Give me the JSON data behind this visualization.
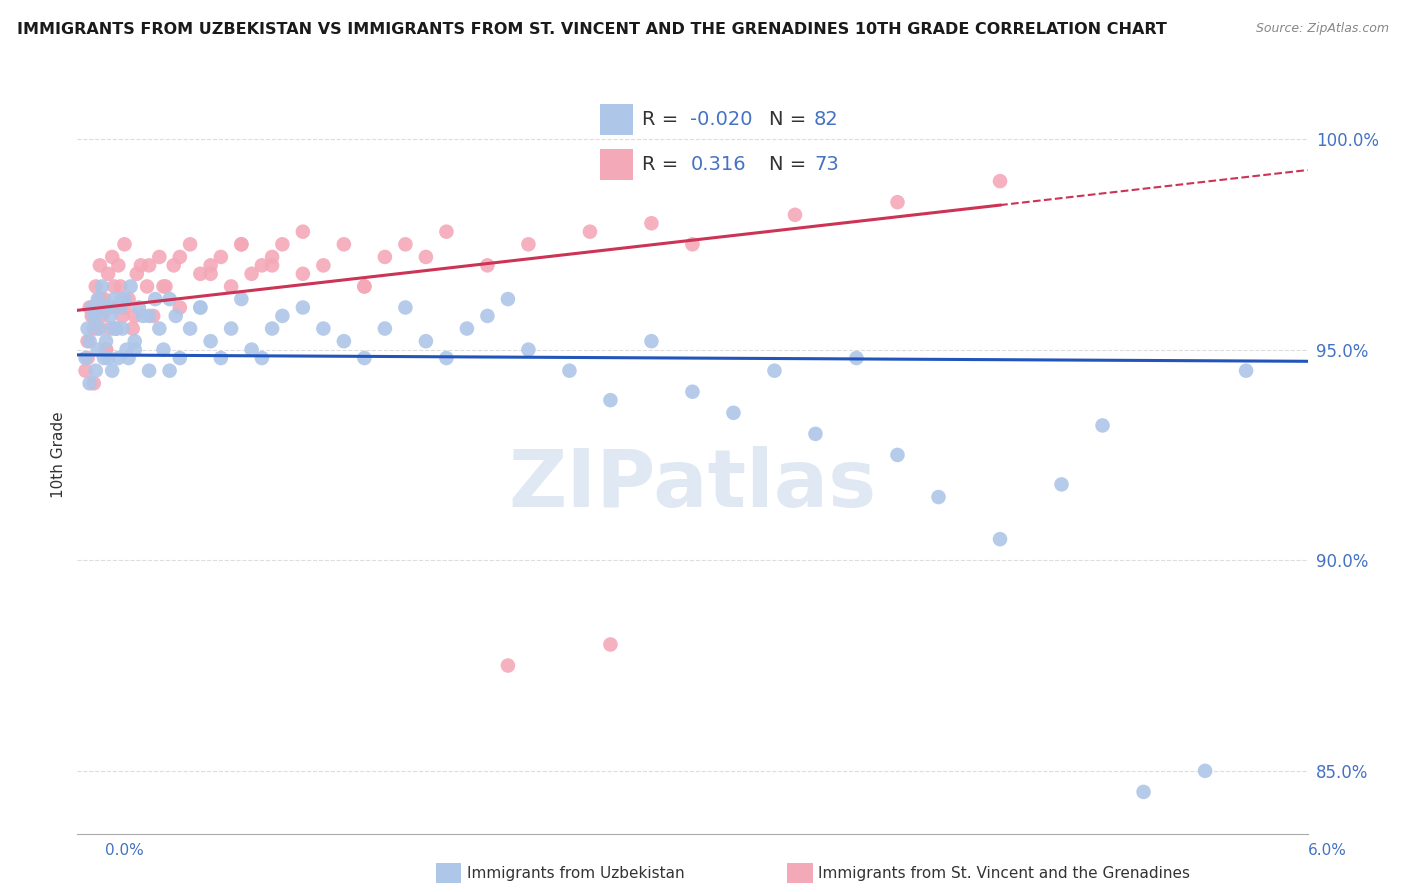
{
  "title": "IMMIGRANTS FROM UZBEKISTAN VS IMMIGRANTS FROM ST. VINCENT AND THE GRENADINES 10TH GRADE CORRELATION CHART",
  "source": "Source: ZipAtlas.com",
  "ylabel": "10th Grade",
  "xlim": [
    0.0,
    6.0
  ],
  "ylim": [
    83.5,
    101.5
  ],
  "y_ticks": [
    85.0,
    90.0,
    95.0,
    100.0
  ],
  "blue_R": -0.02,
  "blue_N": 82,
  "pink_R": 0.316,
  "pink_N": 73,
  "blue_color": "#aec6e8",
  "pink_color": "#f4a9b8",
  "blue_line_color": "#2255bb",
  "pink_line_color": "#cc3355",
  "grid_color": "#dddddd",
  "legend_label_blue": "Immigrants from Uzbekistan",
  "legend_label_pink": "Immigrants from St. Vincent and the Grenadines",
  "blue_x": [
    0.04,
    0.05,
    0.06,
    0.07,
    0.08,
    0.09,
    0.1,
    0.1,
    0.11,
    0.12,
    0.13,
    0.14,
    0.15,
    0.16,
    0.17,
    0.18,
    0.19,
    0.2,
    0.21,
    0.22,
    0.23,
    0.24,
    0.25,
    0.26,
    0.28,
    0.3,
    0.32,
    0.35,
    0.38,
    0.4,
    0.42,
    0.45,
    0.48,
    0.5,
    0.55,
    0.6,
    0.65,
    0.7,
    0.75,
    0.8,
    0.85,
    0.9,
    0.95,
    1.0,
    1.1,
    1.2,
    1.3,
    1.4,
    1.5,
    1.6,
    1.7,
    1.8,
    1.9,
    2.0,
    2.1,
    2.2,
    2.4,
    2.6,
    2.8,
    3.0,
    3.2,
    3.4,
    3.6,
    3.8,
    4.0,
    4.2,
    4.5,
    4.8,
    5.0,
    5.2,
    5.5,
    5.7,
    0.06,
    0.09,
    0.12,
    0.15,
    0.18,
    0.22,
    0.28,
    0.35,
    0.45,
    0.6
  ],
  "blue_y": [
    94.8,
    95.5,
    94.2,
    96.0,
    95.8,
    94.5,
    96.2,
    95.0,
    95.5,
    96.5,
    94.8,
    95.2,
    96.0,
    95.8,
    94.5,
    96.2,
    95.5,
    94.8,
    96.0,
    95.5,
    96.2,
    95.0,
    94.8,
    96.5,
    95.2,
    96.0,
    95.8,
    94.5,
    96.2,
    95.5,
    95.0,
    96.2,
    95.8,
    94.8,
    95.5,
    96.0,
    95.2,
    94.8,
    95.5,
    96.2,
    95.0,
    94.8,
    95.5,
    95.8,
    96.0,
    95.5,
    95.2,
    94.8,
    95.5,
    96.0,
    95.2,
    94.8,
    95.5,
    95.8,
    96.2,
    95.0,
    94.5,
    93.8,
    95.2,
    94.0,
    93.5,
    94.5,
    93.0,
    94.8,
    92.5,
    91.5,
    90.5,
    91.8,
    93.2,
    84.5,
    85.0,
    94.5,
    95.2,
    95.8,
    96.0,
    94.8,
    95.5,
    96.2,
    95.0,
    95.8,
    94.5,
    96.0
  ],
  "pink_x": [
    0.04,
    0.05,
    0.06,
    0.07,
    0.08,
    0.09,
    0.1,
    0.11,
    0.12,
    0.13,
    0.14,
    0.15,
    0.16,
    0.17,
    0.18,
    0.19,
    0.2,
    0.21,
    0.22,
    0.23,
    0.25,
    0.27,
    0.29,
    0.31,
    0.34,
    0.37,
    0.4,
    0.43,
    0.47,
    0.5,
    0.55,
    0.6,
    0.65,
    0.7,
    0.75,
    0.8,
    0.85,
    0.9,
    0.95,
    1.0,
    1.1,
    1.2,
    1.3,
    1.4,
    1.5,
    1.6,
    1.8,
    2.0,
    2.2,
    2.5,
    2.8,
    3.0,
    3.5,
    4.0,
    4.5,
    0.05,
    0.08,
    0.11,
    0.14,
    0.18,
    0.23,
    0.28,
    0.35,
    0.42,
    0.5,
    0.65,
    0.8,
    0.95,
    1.1,
    1.4,
    1.7,
    2.1,
    2.6
  ],
  "pink_y": [
    94.5,
    95.2,
    96.0,
    95.8,
    94.2,
    96.5,
    95.5,
    97.0,
    95.8,
    96.2,
    95.0,
    96.8,
    95.5,
    97.2,
    96.0,
    95.5,
    97.0,
    96.5,
    95.8,
    97.5,
    96.2,
    95.5,
    96.8,
    97.0,
    96.5,
    95.8,
    97.2,
    96.5,
    97.0,
    96.0,
    97.5,
    96.8,
    97.0,
    97.2,
    96.5,
    97.5,
    96.8,
    97.0,
    97.2,
    97.5,
    96.8,
    97.0,
    97.5,
    96.5,
    97.2,
    97.5,
    97.8,
    97.0,
    97.5,
    97.8,
    98.0,
    97.5,
    98.2,
    98.5,
    99.0,
    94.8,
    95.5,
    96.2,
    95.0,
    96.5,
    96.0,
    95.8,
    97.0,
    96.5,
    97.2,
    96.8,
    97.5,
    97.0,
    97.8,
    96.5,
    97.2,
    87.5,
    88.0
  ]
}
